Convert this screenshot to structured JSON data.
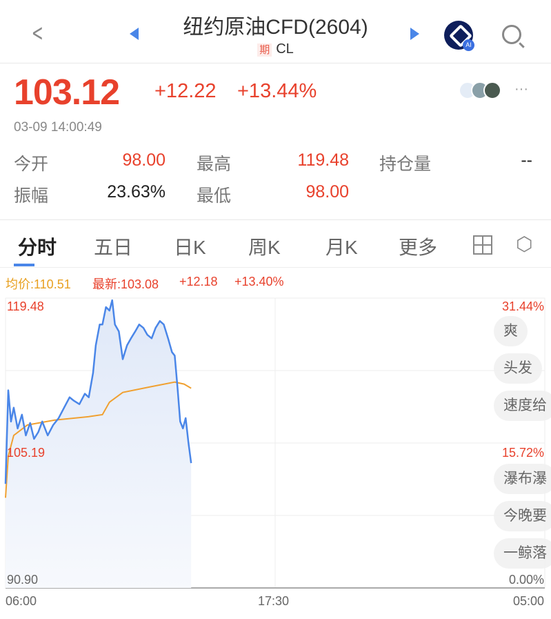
{
  "header": {
    "title": "纽约原油CFD(2604)",
    "tag": "期",
    "code": "CL",
    "ai_badge": "AI"
  },
  "quote": {
    "price": "103.12",
    "change": "+12.22",
    "change_pct": "+13.44%",
    "timestamp": "03-09 14:00:49"
  },
  "stats": [
    {
      "label": "今开",
      "value": "98.00"
    },
    {
      "label": "最高",
      "value": "119.48"
    },
    {
      "label": "持仓量",
      "value": "--"
    },
    {
      "label": "振幅",
      "value": "23.63%"
    },
    {
      "label": "最低",
      "value": "98.00"
    }
  ],
  "tabs": [
    {
      "label": "分时"
    },
    {
      "label": "五日"
    },
    {
      "label": "日K"
    },
    {
      "label": "周K"
    },
    {
      "label": "月K"
    },
    {
      "label": "更多"
    }
  ],
  "chart_info": {
    "avg": "均价:110.51",
    "latest": "最新:103.08",
    "change": "+12.18",
    "change_pct": "+13.40%"
  },
  "colors": {
    "up": "#e8412c",
    "price_line": "#4a86e8",
    "avg_line": "#f0a030",
    "accent": "#4a86e8"
  },
  "danmaku": [
    "爽",
    "头发",
    "速度给",
    "瀑布瀑",
    "今晚要",
    "一鲸落"
  ],
  "chart_data": {
    "type": "line",
    "y_labels_left": [
      "119.48",
      "105.19",
      "90.90"
    ],
    "y_labels_right": [
      "31.44%",
      "15.72%",
      "0.00%"
    ],
    "x_labels": [
      "06:00",
      "17:30",
      "05:00"
    ],
    "ylim": [
      90.9,
      119.48
    ],
    "xlim": [
      "06:00",
      "05:00"
    ],
    "grid": true,
    "series": [
      {
        "key": "price",
        "x": [
          "06:00",
          "06:07",
          "06:14",
          "06:21",
          "06:31",
          "06:42",
          "06:52",
          "07:03",
          "07:13",
          "07:24",
          "07:34",
          "07:48",
          "08:02",
          "08:16",
          "08:30",
          "08:44",
          "08:55",
          "09:09",
          "09:23",
          "09:33",
          "09:44",
          "09:51",
          "10:01",
          "10:08",
          "10:17",
          "10:26",
          "10:33",
          "10:40",
          "10:50",
          "11:00",
          "11:11",
          "11:21",
          "11:32",
          "11:42",
          "11:53",
          "12:03",
          "12:14",
          "12:24",
          "12:35",
          "12:45",
          "12:56",
          "13:06",
          "13:13",
          "13:20",
          "13:27",
          "13:34",
          "13:41",
          "13:48",
          "13:55"
        ],
        "values": [
          101.16,
          110.39,
          107.31,
          108.68,
          106.63,
          107.99,
          105.94,
          107.17,
          105.6,
          106.28,
          107.31,
          105.94,
          106.97,
          107.65,
          108.68,
          109.7,
          109.36,
          109.02,
          110.05,
          109.7,
          112.1,
          114.83,
          116.88,
          116.88,
          118.59,
          118.25,
          119.27,
          116.88,
          116.2,
          113.46,
          114.83,
          115.51,
          116.2,
          116.88,
          116.54,
          115.86,
          115.51,
          116.54,
          117.22,
          116.88,
          115.51,
          114.15,
          113.81,
          110.73,
          107.31,
          106.63,
          107.65,
          105.26,
          103.21
        ]
      },
      {
        "key": "avg",
        "x": [
          "06:00",
          "06:07",
          "06:21",
          "06:56",
          "08:06",
          "09:33",
          "10:08",
          "10:26",
          "11:00",
          "12:10",
          "13:13",
          "13:37",
          "13:55"
        ],
        "values": [
          99.79,
          103.89,
          105.94,
          106.97,
          107.45,
          107.79,
          107.99,
          109.22,
          110.18,
          110.73,
          111.2,
          111.0,
          110.59
        ]
      }
    ]
  }
}
